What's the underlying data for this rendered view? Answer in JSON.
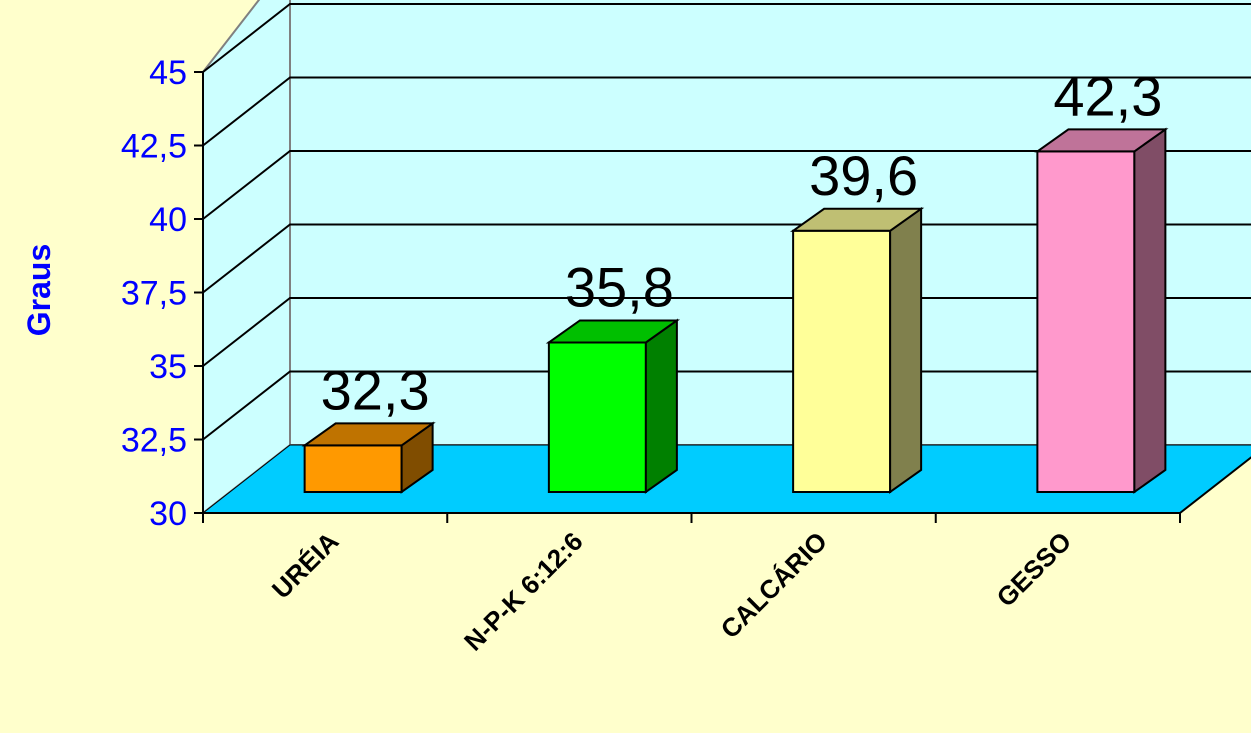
{
  "chart_data": {
    "type": "bar",
    "categories": [
      "URÉIA",
      "N-P-K 6:12:6",
      "CALCÁRIO",
      "GESSO"
    ],
    "values": [
      32.3,
      35.8,
      39.6,
      42.3
    ],
    "data_labels": [
      "32,3",
      "35,8",
      "39,6",
      "42,3"
    ],
    "ylabel": "Graus",
    "ylim": [
      30,
      45
    ],
    "y_ticks": [
      "30",
      "32,5",
      "35",
      "37,5",
      "40",
      "42,5",
      "45"
    ],
    "grid": true,
    "legend": "none",
    "three_d": true
  },
  "colors": {
    "page_background": "#ffffcc",
    "wall": "#ccffff",
    "floor": "#00ccff",
    "axis_text": "#0000ff",
    "bars": [
      "#ff9900",
      "#00ff00",
      "#ffff99",
      "#ff99cc"
    ]
  }
}
